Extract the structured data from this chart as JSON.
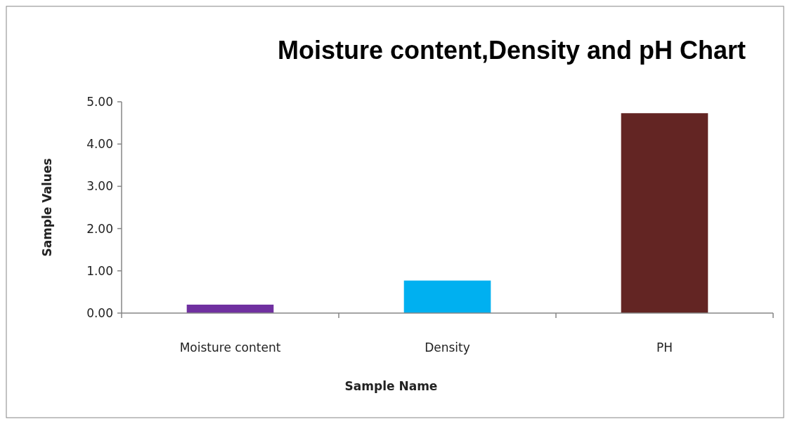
{
  "chart_data": {
    "type": "bar",
    "title": "Moisture content,Density and pH Chart",
    "xlabel": "Sample Name",
    "ylabel": "Sample Values",
    "categories": [
      "Moisture content",
      "Density",
      "PH"
    ],
    "values": [
      0.2,
      0.77,
      4.73
    ],
    "colors": [
      "#7030a0",
      "#00b0f0",
      "#632523"
    ],
    "ylim": [
      0,
      5
    ],
    "yticks": [
      {
        "value": 0,
        "label": "0.00"
      },
      {
        "value": 1,
        "label": "1.00"
      },
      {
        "value": 2,
        "label": "2.00"
      },
      {
        "value": 3,
        "label": "3.00"
      },
      {
        "value": 4,
        "label": "4.00"
      },
      {
        "value": 5,
        "label": "5.00"
      }
    ],
    "grid": false
  }
}
